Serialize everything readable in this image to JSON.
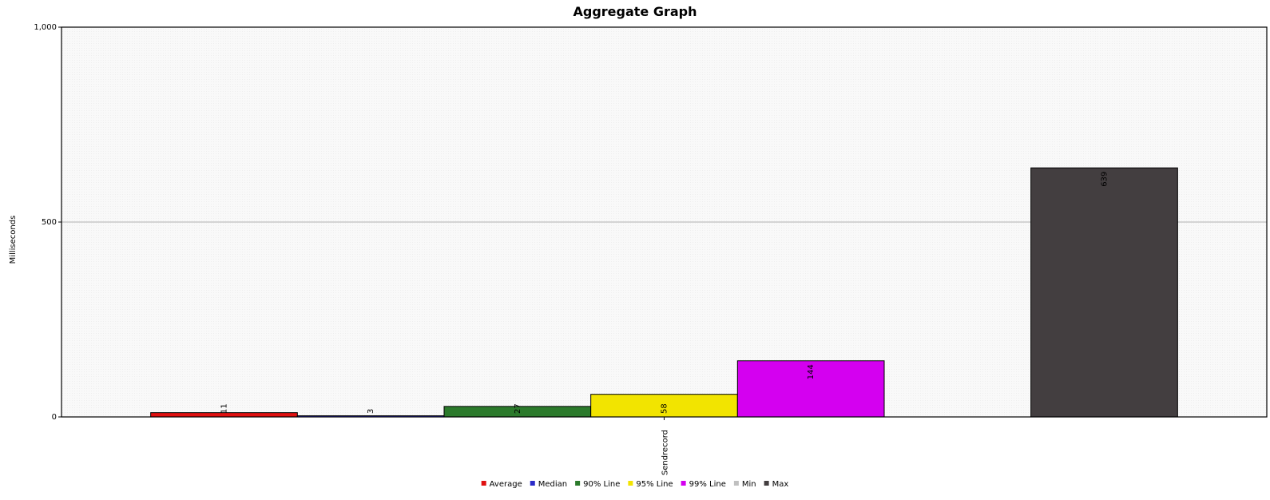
{
  "chart_data": {
    "type": "bar",
    "title": "Aggregate Graph",
    "xlabel": "",
    "ylabel": "Milliseconds",
    "ylim": [
      0,
      1000
    ],
    "yticks": [
      0,
      500,
      1000
    ],
    "ytick_labels": [
      "0",
      "500",
      "1,000"
    ],
    "categories": [
      "Sendrecord"
    ],
    "grid": true,
    "legend_position": "bottom",
    "series": [
      {
        "name": "Average",
        "values": [
          11
        ],
        "label": "11",
        "color": "#e01010"
      },
      {
        "name": "Median",
        "values": [
          3
        ],
        "label": "3",
        "color": "#2a2ac8"
      },
      {
        "name": "90% Line",
        "values": [
          27
        ],
        "label": "27",
        "color": "#2b7a2b"
      },
      {
        "name": "95% Line",
        "values": [
          58
        ],
        "label": "58",
        "color": "#f2e400"
      },
      {
        "name": "99% Line",
        "values": [
          144
        ],
        "label": "144",
        "color": "#d400f0"
      },
      {
        "name": "Min",
        "values": [
          0
        ],
        "label": "",
        "color": "#c0c0c0"
      },
      {
        "name": "Max",
        "values": [
          639
        ],
        "label": "639",
        "color": "#433e40"
      }
    ]
  }
}
